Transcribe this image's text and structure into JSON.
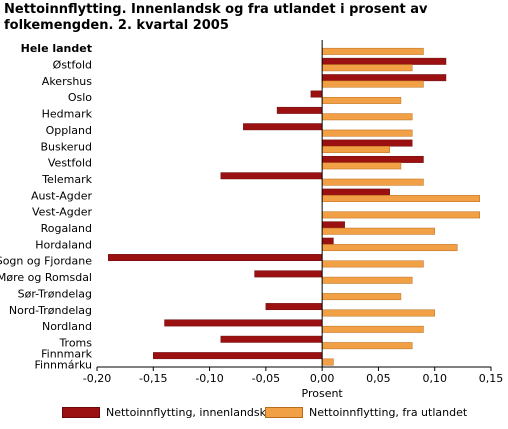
{
  "chart_data": {
    "type": "bar",
    "orientation": "horizontal",
    "title": "Nettoinnflytting. Innenlandsk og fra utlandet i prosent av folkemengden. 2. kvartal 2005",
    "xlabel": "Prosent",
    "ylabel": "",
    "xlim": [
      -0.2,
      0.15
    ],
    "xticks": [
      "-0,20",
      "-0,15",
      "-0,10",
      "-0,05",
      "0,00",
      "0,05",
      "0,10",
      "0,15"
    ],
    "grid": false,
    "legend_position": "bottom",
    "categories": [
      "Hele landet",
      "Østfold",
      "Akershus",
      "Oslo",
      "Hedmark",
      "Oppland",
      "Buskerud",
      "Vestfold",
      "Telemark",
      "Aust-Agder",
      "Vest-Agder",
      "Rogaland",
      "Hordaland",
      "Sogn og Fjordane",
      "Møre og Romsdal",
      "Sør-Trøndelag",
      "Nord-Trøndelag",
      "Nordland",
      "Troms",
      "Finnmark\nFinnmárku"
    ],
    "series": [
      {
        "name": "Nettoinnflytting, innenlandsk",
        "color": "#9b1111",
        "values": [
          0.0,
          0.11,
          0.11,
          -0.01,
          -0.04,
          -0.07,
          0.08,
          0.09,
          -0.09,
          0.06,
          0.0,
          0.02,
          0.01,
          -0.19,
          -0.06,
          0.0,
          -0.05,
          -0.14,
          -0.09,
          -0.15
        ]
      },
      {
        "name": "Nettoinnflytting, fra utlandet",
        "color": "#f2a045",
        "values": [
          0.09,
          0.08,
          0.09,
          0.07,
          0.08,
          0.08,
          0.06,
          0.07,
          0.09,
          0.14,
          0.14,
          0.1,
          0.12,
          0.09,
          0.08,
          0.07,
          0.1,
          0.09,
          0.08,
          0.01
        ]
      }
    ]
  }
}
